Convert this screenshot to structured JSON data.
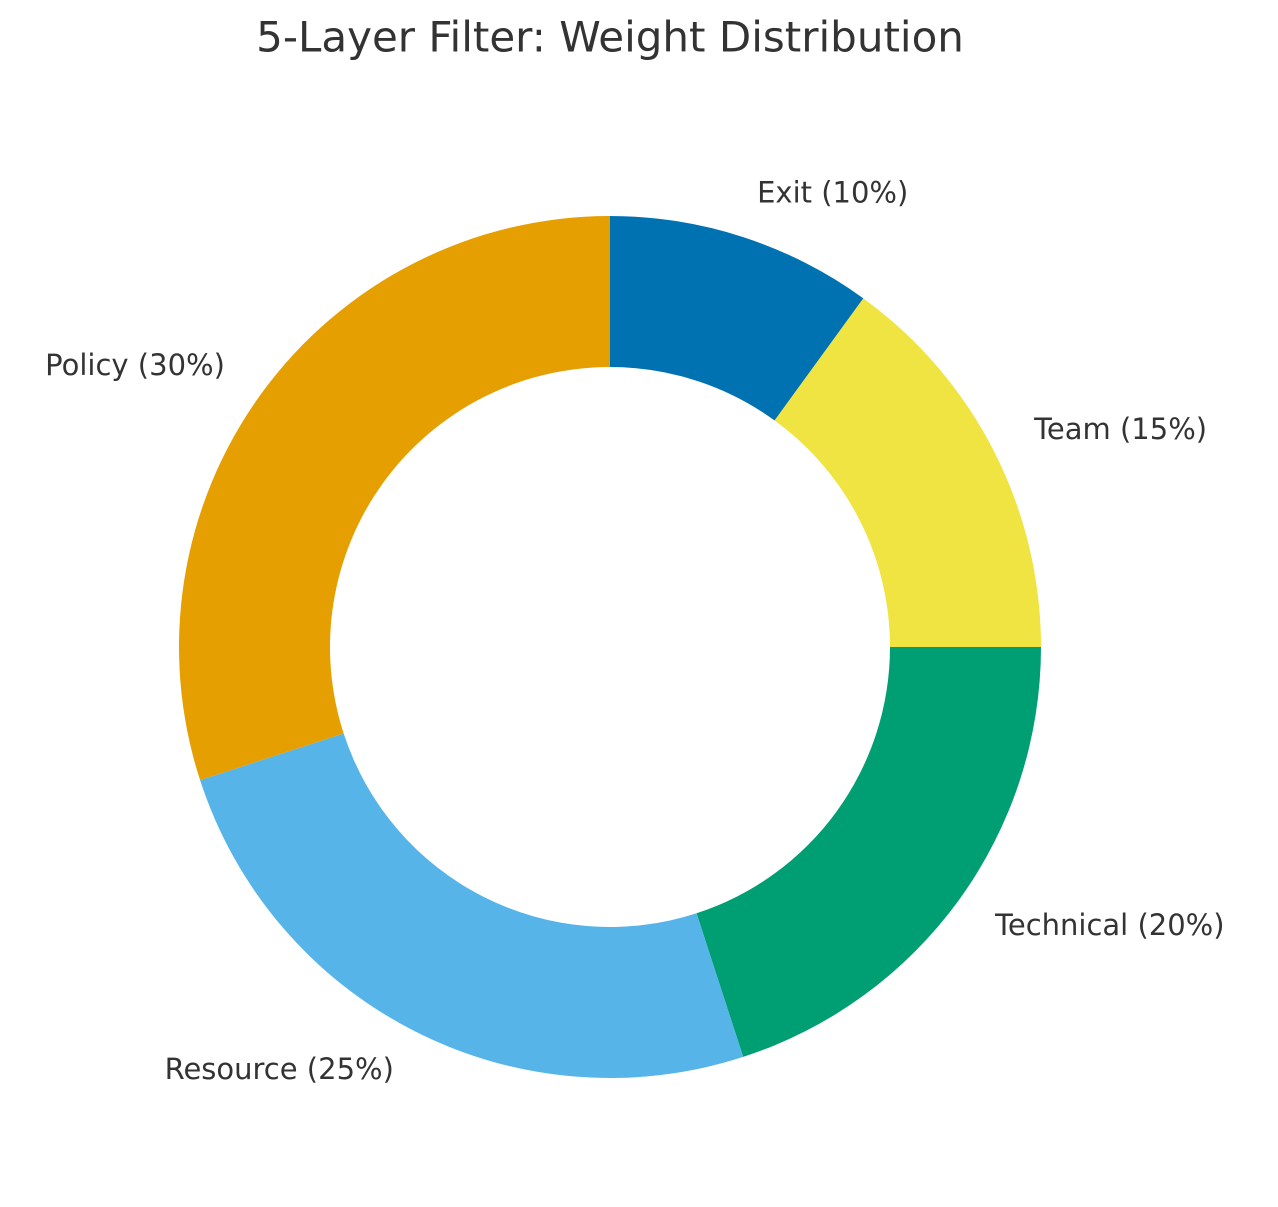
{
  "chart_data": {
    "type": "donut",
    "title": "5-Layer Filter: Weight Distribution",
    "categories": [
      "Exit (10%)",
      "Team (15%)",
      "Technical (20%)",
      "Resource (25%)",
      "Policy (30%)"
    ],
    "values": [
      10,
      15,
      20,
      25,
      30
    ],
    "colors": [
      "#0072b2",
      "#f0e442",
      "#009e73",
      "#56b4e9",
      "#e69f00"
    ]
  }
}
